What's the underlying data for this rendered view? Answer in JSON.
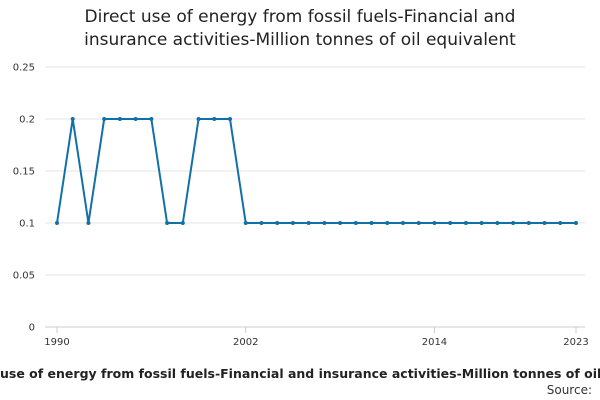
{
  "chart_data": {
    "type": "line",
    "title_lines": [
      "Direct use of energy from fossil fuels-Financial and",
      "insurance activities-Million tonnes of oil equivalent"
    ],
    "x": [
      1990,
      1991,
      1992,
      1993,
      1994,
      1995,
      1996,
      1997,
      1998,
      1999,
      2000,
      2001,
      2002,
      2003,
      2004,
      2005,
      2006,
      2007,
      2008,
      2009,
      2010,
      2011,
      2012,
      2013,
      2014,
      2015,
      2016,
      2017,
      2018,
      2019,
      2020,
      2021,
      2022,
      2023
    ],
    "series": [
      {
        "name": "Direct use of energy from fossil fuels-Financial and insurance activities-Million tonnes of oil equivalent",
        "values": [
          0.1,
          0.2,
          0.1,
          0.2,
          0.2,
          0.2,
          0.2,
          0.1,
          0.1,
          0.2,
          0.2,
          0.2,
          0.1,
          0.1,
          0.1,
          0.1,
          0.1,
          0.1,
          0.1,
          0.1,
          0.1,
          0.1,
          0.1,
          0.1,
          0.1,
          0.1,
          0.1,
          0.1,
          0.1,
          0.1,
          0.1,
          0.1,
          0.1,
          0.1
        ],
        "color": "#1170aa"
      }
    ],
    "x_ticks": [
      1990,
      2002,
      2014,
      2023
    ],
    "y_ticks": [
      "0",
      "0.05",
      "0.1",
      "0.15",
      "0.2",
      "0.25"
    ],
    "ylim": [
      0,
      0.25
    ],
    "xlim": [
      1990,
      2023
    ],
    "grid": true,
    "legend": "bottom",
    "legend_text": "use of energy from fossil fuels-Financial and insurance activities-Million tonnes of oil e",
    "source": "Source:"
  }
}
